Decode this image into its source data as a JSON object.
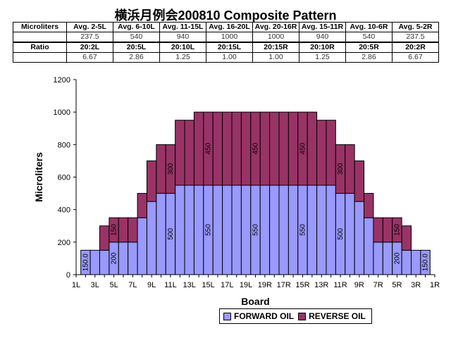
{
  "title": "横浜月例会200810 Composite Pattern",
  "table": {
    "rows": [
      [
        "Microliters",
        "Avg. 2-5L",
        "Avg. 6-10L",
        "Avg. 11-15L",
        "Avg. 16-20L",
        "Avg. 20-16R",
        "Avg. 15-11R",
        "Avg. 10-6R",
        "Avg. 5-2R"
      ],
      [
        "",
        "237.5",
        "540",
        "940",
        "1000",
        "1000",
        "940",
        "540",
        "237.5"
      ],
      [
        "Ratio",
        "20:2L",
        "20:5L",
        "20:10L",
        "20:15L",
        "20:15R",
        "20:10R",
        "20:5R",
        "20:2R"
      ],
      [
        "",
        "6.67",
        "2.86",
        "1.25",
        "1.00",
        "1.00",
        "1.25",
        "2.86",
        "6.67"
      ]
    ]
  },
  "chart_data": {
    "type": "bar",
    "stacked": true,
    "xlabel": "Board",
    "ylabel": "Microliters",
    "ylim": [
      0,
      1200
    ],
    "ytick_step": 200,
    "grid": false,
    "legend_position": "bottom",
    "categories": [
      "1L",
      "2L",
      "3L",
      "4L",
      "5L",
      "6L",
      "7L",
      "8L",
      "9L",
      "10L",
      "11L",
      "12L",
      "13L",
      "14L",
      "15L",
      "16L",
      "17L",
      "18L",
      "19L",
      "20L",
      "19R",
      "18R",
      "17R",
      "16R",
      "15R",
      "14R",
      "13R",
      "12R",
      "11R",
      "10R",
      "9R",
      "8R",
      "7R",
      "6R",
      "5R",
      "4R",
      "3R",
      "2R",
      "1R"
    ],
    "xtick_labels": [
      "1L",
      "3L",
      "5L",
      "7L",
      "9L",
      "11L",
      "13L",
      "15L",
      "17L",
      "19L",
      "19R",
      "17R",
      "15R",
      "13R",
      "11R",
      "9R",
      "7R",
      "5R",
      "3R",
      "1R"
    ],
    "series": [
      {
        "name": "FORWARD OIL",
        "color": "#9999ff",
        "values": [
          0,
          150,
          150,
          150,
          200,
          200,
          200,
          350,
          450,
          500,
          500,
          550,
          550,
          550,
          550,
          550,
          550,
          550,
          550,
          550,
          550,
          550,
          550,
          550,
          550,
          550,
          550,
          550,
          500,
          500,
          450,
          350,
          200,
          200,
          200,
          150,
          150,
          150,
          0
        ]
      },
      {
        "name": "REVERSE OIL",
        "color": "#993366",
        "values": [
          0,
          0,
          0,
          150,
          150,
          150,
          150,
          150,
          250,
          300,
          300,
          400,
          400,
          450,
          450,
          450,
          450,
          450,
          450,
          450,
          450,
          450,
          450,
          450,
          450,
          450,
          400,
          400,
          300,
          300,
          250,
          150,
          150,
          150,
          150,
          150,
          0,
          0,
          0
        ]
      }
    ],
    "data_labels": [
      {
        "index": 1,
        "series": 0,
        "text": "150.0"
      },
      {
        "index": 4,
        "series": 0,
        "text": "200"
      },
      {
        "index": 4,
        "series": 1,
        "text": "150"
      },
      {
        "index": 10,
        "series": 0,
        "text": "500"
      },
      {
        "index": 10,
        "series": 1,
        "text": "300"
      },
      {
        "index": 14,
        "series": 0,
        "text": "550"
      },
      {
        "index": 14,
        "series": 1,
        "text": "450"
      },
      {
        "index": 19,
        "series": 0,
        "text": "550"
      },
      {
        "index": 19,
        "series": 1,
        "text": "450"
      },
      {
        "index": 24,
        "series": 0,
        "text": "550"
      },
      {
        "index": 24,
        "series": 1,
        "text": "450"
      },
      {
        "index": 28,
        "series": 0,
        "text": "500"
      },
      {
        "index": 28,
        "series": 1,
        "text": "300"
      },
      {
        "index": 34,
        "series": 0,
        "text": "200"
      },
      {
        "index": 34,
        "series": 1,
        "text": "150"
      },
      {
        "index": 37,
        "series": 0,
        "text": "150.0"
      }
    ]
  },
  "legend": {
    "items": [
      {
        "label": "FORWARD OIL",
        "color": "#9999ff"
      },
      {
        "label": "REVERSE OIL",
        "color": "#993366"
      }
    ]
  }
}
